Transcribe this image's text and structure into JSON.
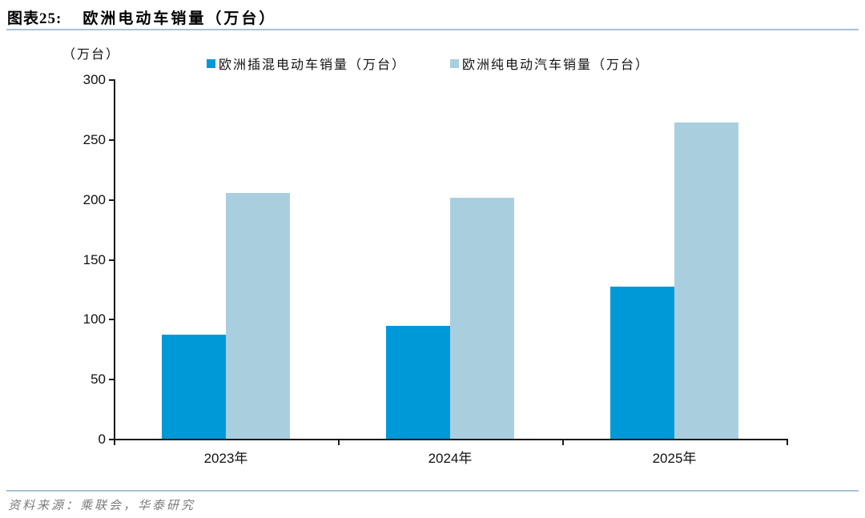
{
  "header": {
    "label": "图表25:",
    "title": "欧洲电动车销量（万台）"
  },
  "chart_data": {
    "type": "bar",
    "title": "欧洲电动车销量（万台）",
    "unit_label": "（万台）",
    "categories": [
      "2023年",
      "2024年",
      "2025年"
    ],
    "series": [
      {
        "name": "欧洲插混电动车销量（万台）",
        "color": "#0099D8",
        "values": [
          87,
          94,
          127
        ]
      },
      {
        "name": "欧洲纯电动汽车销量（万台）",
        "color": "#A9CFDF",
        "values": [
          205,
          201,
          264
        ]
      }
    ],
    "xlabel": "",
    "ylabel": "（万台）",
    "ylim": [
      0,
      300
    ],
    "yticks": [
      0,
      50,
      100,
      150,
      200,
      250,
      300
    ],
    "grid": false,
    "legend_position": "top-center"
  },
  "source": {
    "text": "资料来源：乘联会，华泰研究"
  },
  "style": {
    "series_dark": "#0099D8",
    "series_light": "#A9CFDF",
    "divider_color": "#A7C2D6",
    "axis_color": "#1A1A1A",
    "source_color": "#7A7A7A"
  }
}
